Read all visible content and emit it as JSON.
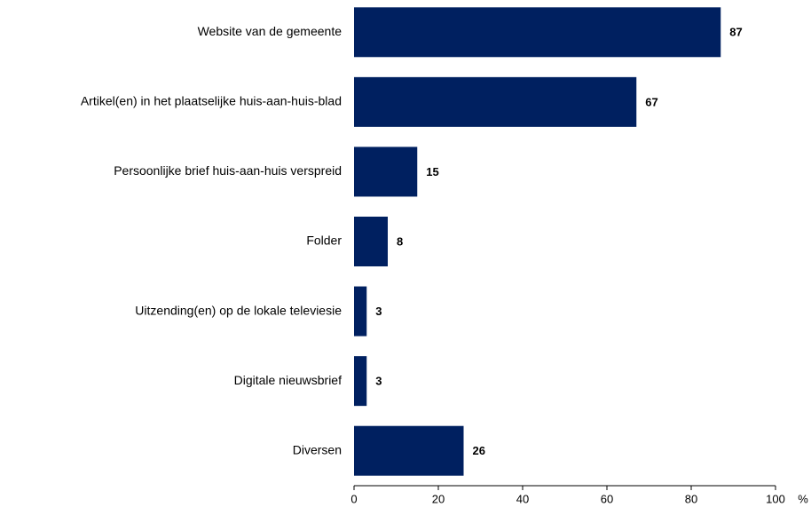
{
  "chart_data": {
    "type": "bar",
    "orientation": "horizontal",
    "categories": [
      "Website van de gemeente",
      "Artikel(en) in het plaatselijke huis-aan-huis-blad",
      "Persoonlijke brief huis-aan-huis verspreid",
      "Folder",
      "Uitzending(en) op de lokale televiesie",
      "Digitale nieuwsbrief",
      "Diversen"
    ],
    "values": [
      87,
      67,
      15,
      8,
      3,
      3,
      26
    ],
    "color": "#002060",
    "xlim": [
      0,
      100
    ],
    "xticks": [
      0,
      20,
      40,
      60,
      80,
      100
    ],
    "xlabel": "%",
    "grid": false
  }
}
